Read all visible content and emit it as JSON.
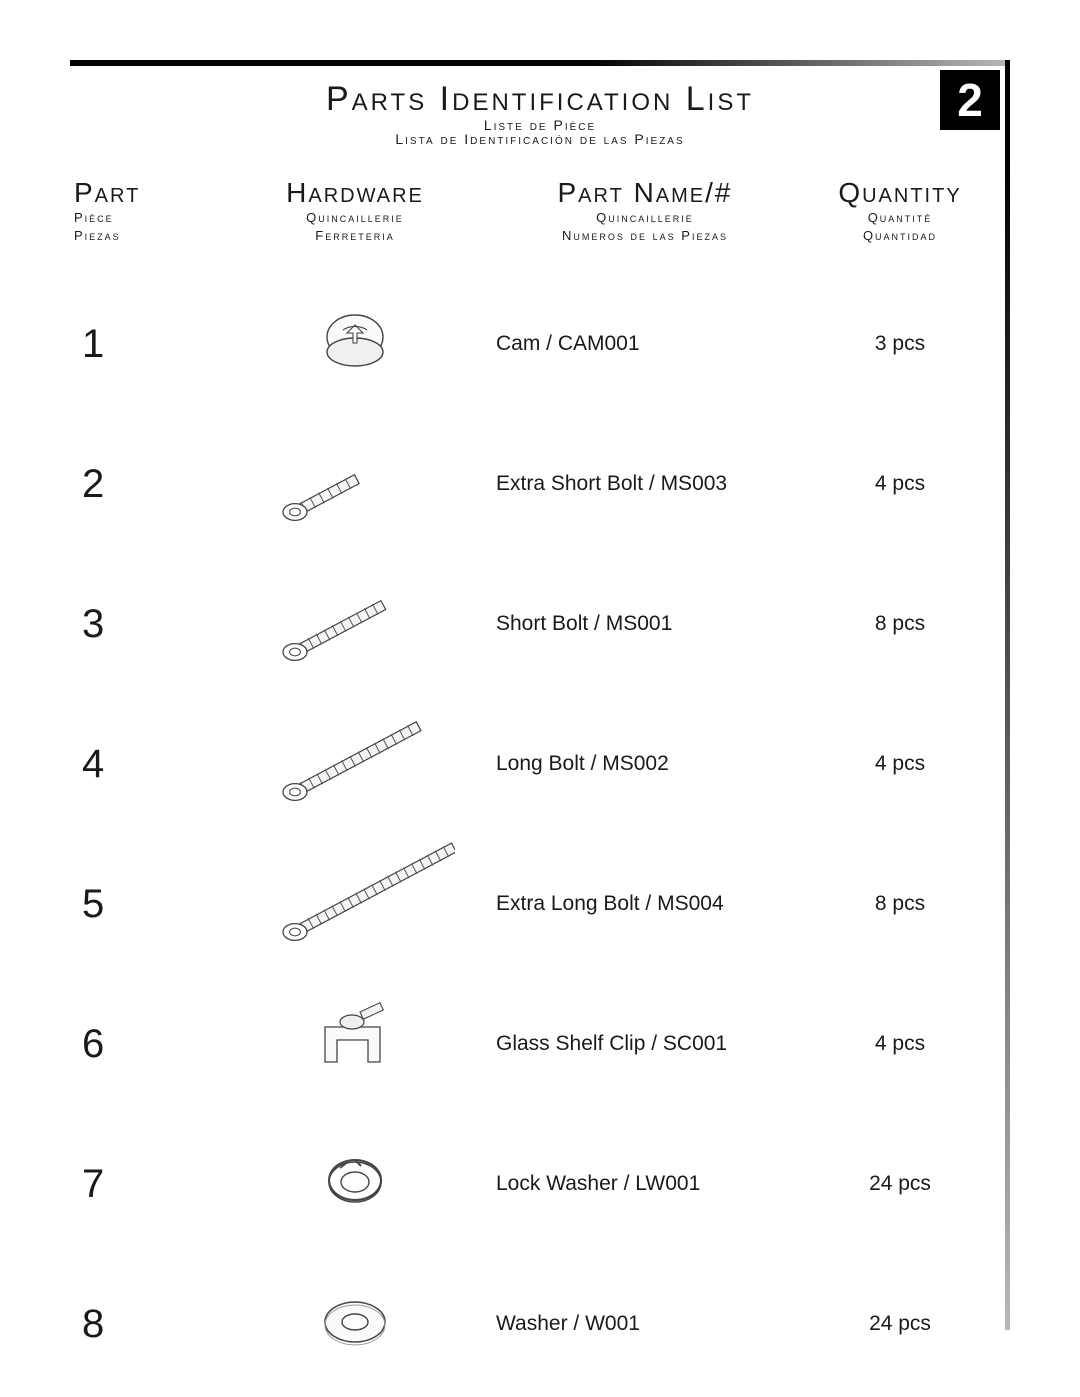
{
  "page_number": "2",
  "title": {
    "en": "Parts  Identification List",
    "fr": "Liste de Pièce",
    "es": "Lista de Identificación de las Piezas"
  },
  "columns": {
    "part": {
      "en": "Part",
      "fr": "Pièce",
      "es": "Piezas"
    },
    "hardware": {
      "en": "Hardware",
      "fr": "Quincaillerie",
      "es": "Ferreteria"
    },
    "name": {
      "en": "Part Name/#",
      "fr": "Quincaillerie",
      "es": "Numeros de las Piezas"
    },
    "qty": {
      "en": "Quantity",
      "fr": "Quantité",
      "es": "Quantidad"
    }
  },
  "rows": [
    {
      "num": "1",
      "icon": "cam",
      "name": "Cam / CAM001",
      "qty": "3 pcs"
    },
    {
      "num": "2",
      "icon": "bolt-xs",
      "name": "Extra Short Bolt / MS003",
      "qty": "4 pcs"
    },
    {
      "num": "3",
      "icon": "bolt-s",
      "name": "Short Bolt / MS001",
      "qty": "8 pcs"
    },
    {
      "num": "4",
      "icon": "bolt-l",
      "name": "Long Bolt / MS002",
      "qty": "4 pcs"
    },
    {
      "num": "5",
      "icon": "bolt-xl",
      "name": "Extra Long Bolt / MS004",
      "qty": "8 pcs"
    },
    {
      "num": "6",
      "icon": "shelf-clip",
      "name": "Glass Shelf Clip / SC001",
      "qty": "4 pcs"
    },
    {
      "num": "7",
      "icon": "lock-washer",
      "name": "Lock Washer / LW001",
      "qty": "24 pcs"
    },
    {
      "num": "8",
      "icon": "washer",
      "name": "Washer / W001",
      "qty": "24 pcs"
    }
  ],
  "style": {
    "text_color": "#1a1a1a",
    "rule_gradient_from": "#000000",
    "rule_gradient_to": "#b8b8b8",
    "badge_bg": "#000000",
    "badge_fg": "#ffffff",
    "title_fontsize_pt": 26,
    "header_fontsize_pt": 21,
    "body_fontsize_pt": 16,
    "partnum_fontsize_pt": 30
  }
}
